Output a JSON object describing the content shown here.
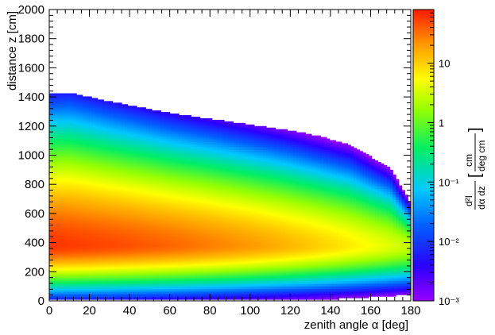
{
  "chart_data": {
    "type": "heatmap",
    "title": "",
    "xlabel": "zenith angle α [deg]",
    "ylabel": "distance z [cm]",
    "xlim": [
      0,
      180
    ],
    "ylim": [
      0,
      2000
    ],
    "x_ticks": [
      "0",
      "20",
      "40",
      "60",
      "80",
      "100",
      "120",
      "140",
      "160",
      "180"
    ],
    "y_ticks": [
      "0",
      "200",
      "400",
      "600",
      "800",
      "1000",
      "1200",
      "1400",
      "1600",
      "1800",
      "2000"
    ],
    "z_scale": "log",
    "zlim": [
      0.001,
      80
    ],
    "colorbar": {
      "ticks": [
        "10⁻³",
        "10⁻²",
        "10⁻¹",
        "1",
        "10"
      ],
      "label_numerator": "d²I",
      "label_denominator": "dα dz",
      "unit_numerator": "cm",
      "unit_denominator": "deg cm"
    },
    "distribution": {
      "peak_value": 60,
      "peak_at": {
        "alpha": 0,
        "z": 380
      },
      "upper_edge": [
        {
          "alpha": 0,
          "z": 1420
        },
        {
          "alpha": 10,
          "z": 1430
        },
        {
          "alpha": 30,
          "z": 1370
        },
        {
          "alpha": 60,
          "z": 1290
        },
        {
          "alpha": 90,
          "z": 1230
        },
        {
          "alpha": 120,
          "z": 1170
        },
        {
          "alpha": 150,
          "z": 1090
        },
        {
          "alpha": 170,
          "z": 950
        },
        {
          "alpha": 180,
          "z": 700
        }
      ],
      "lower_edge_z": 10
    },
    "colors": [
      "#9900ff",
      "#0000ff",
      "#00bbff",
      "#00ee44",
      "#ffff00",
      "#ff0000"
    ]
  }
}
